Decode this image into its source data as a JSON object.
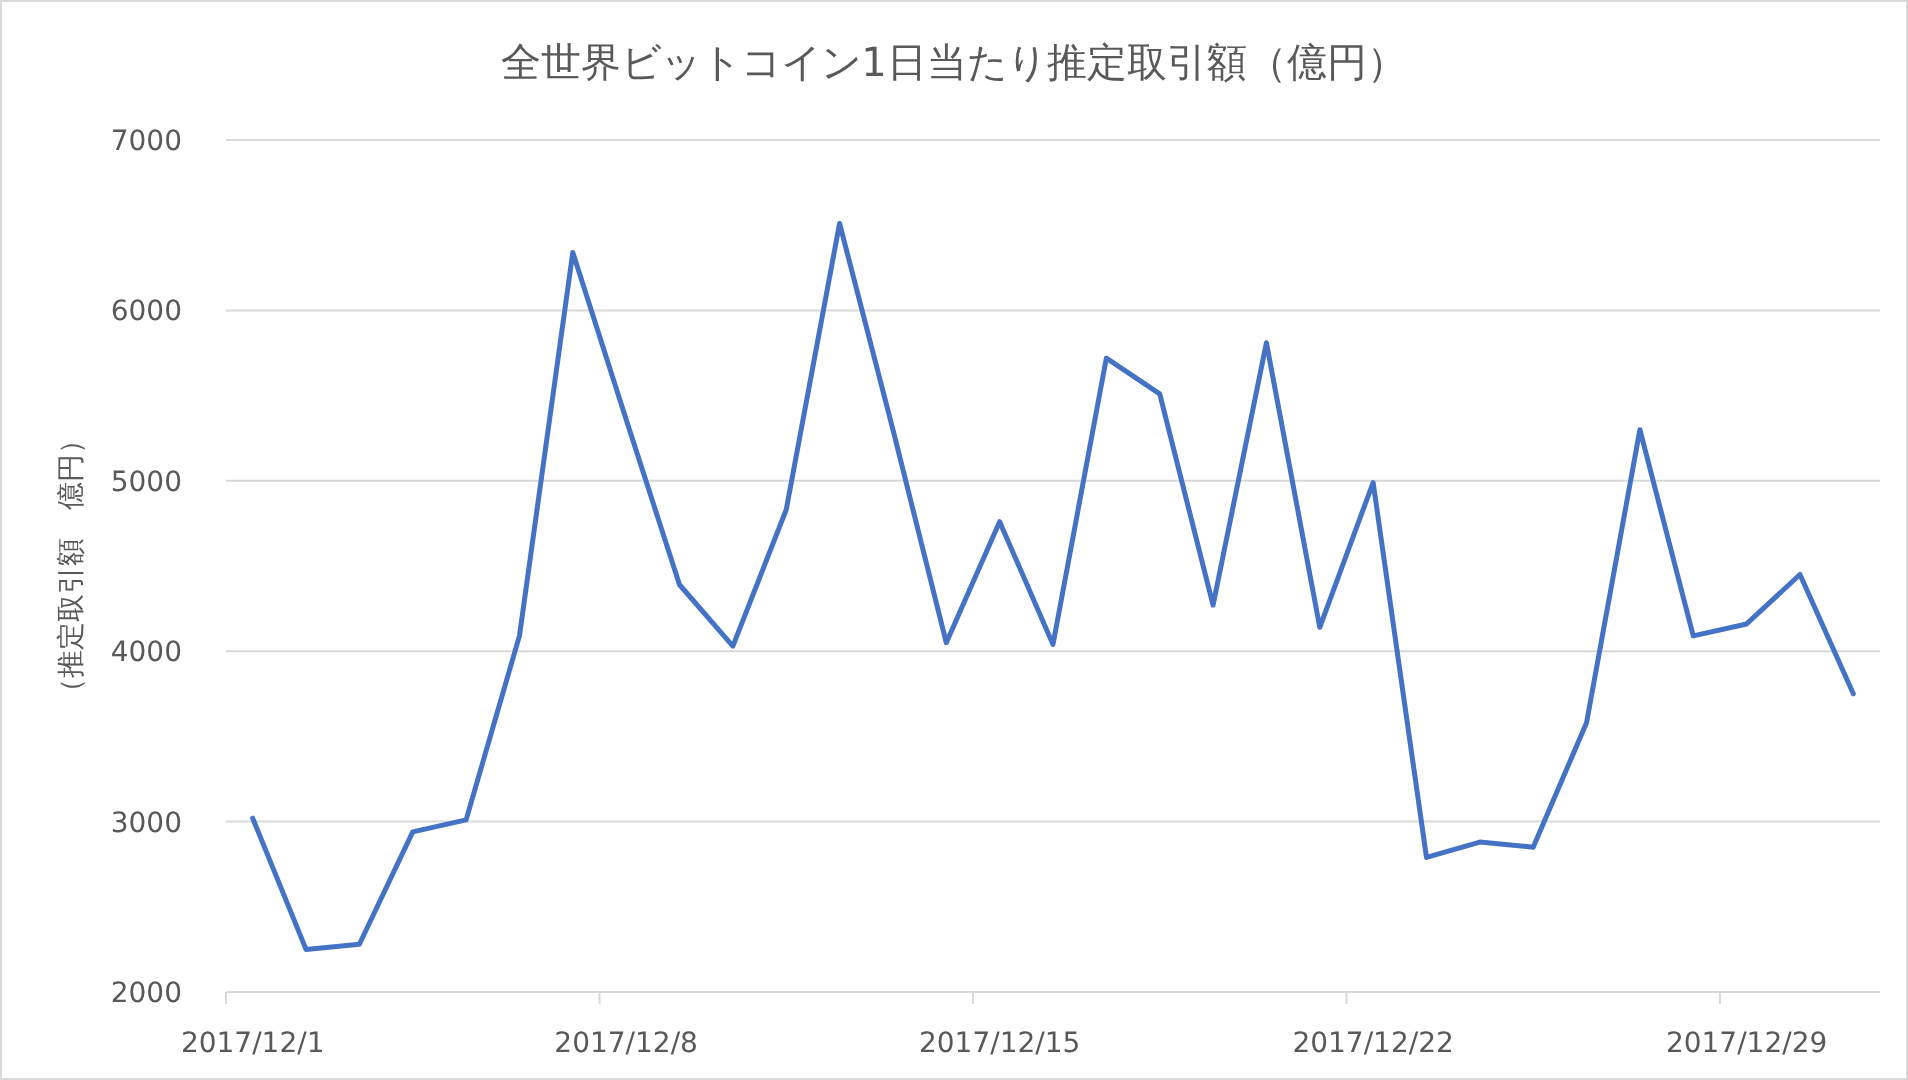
{
  "chart_data": {
    "type": "line",
    "title": "全世界ビットコイン1日当たり推定取引額（億円）",
    "ylabel": "（推定取引額　億円）",
    "categories": [
      "2017/12/1",
      null,
      null,
      null,
      null,
      null,
      null,
      "2017/12/8",
      null,
      null,
      null,
      null,
      null,
      null,
      "2017/12/15",
      null,
      null,
      null,
      null,
      null,
      null,
      "2017/12/22",
      null,
      null,
      null,
      null,
      null,
      null,
      "2017/12/29",
      null,
      null
    ],
    "series": [
      {
        "color": "#4472c4",
        "values": [
          3020,
          2250,
          2280,
          2940,
          3010,
          4090,
          6340,
          5360,
          4390,
          4030,
          4830,
          6510,
          5300,
          4050,
          4760,
          4040,
          5720,
          5510,
          4270,
          5810,
          4140,
          4990,
          2790,
          2880,
          2850,
          3580,
          5300,
          4090,
          4160,
          4450,
          3750
        ]
      }
    ],
    "ylim": [
      2000,
      7000
    ],
    "yticks": [
      2000,
      3000,
      4000,
      5000,
      6000,
      7000
    ],
    "grid": "y",
    "marker": "none",
    "line_style": "solid"
  }
}
